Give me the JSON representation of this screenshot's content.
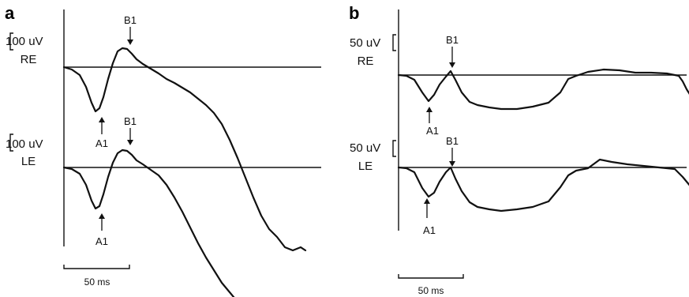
{
  "chart_data": [
    {
      "type": "line",
      "panel": "a",
      "scale_bar_x": "50 ms",
      "traces": [
        {
          "eye": "RE",
          "amplitude_scale": "100 uV",
          "peaks": [
            "A1",
            "B1"
          ],
          "points": [
            [
              0,
              0
            ],
            [
              10,
              -3
            ],
            [
              20,
              -10
            ],
            [
              28,
              -25
            ],
            [
              35,
              -45
            ],
            [
              40,
              -56
            ],
            [
              45,
              -52
            ],
            [
              50,
              -38
            ],
            [
              56,
              -15
            ],
            [
              62,
              5
            ],
            [
              68,
              20
            ],
            [
              74,
              24
            ],
            [
              80,
              23
            ],
            [
              86,
              17
            ],
            [
              92,
              10
            ],
            [
              100,
              4
            ],
            [
              110,
              -2
            ],
            [
              120,
              -8
            ],
            [
              130,
              -15
            ],
            [
              140,
              -20
            ],
            [
              150,
              -26
            ],
            [
              160,
              -32
            ],
            [
              170,
              -40
            ],
            [
              180,
              -48
            ],
            [
              190,
              -58
            ],
            [
              200,
              -72
            ],
            [
              210,
              -92
            ],
            [
              220,
              -115
            ],
            [
              230,
              -140
            ],
            [
              240,
              -165
            ],
            [
              250,
              -188
            ],
            [
              260,
              -205
            ],
            [
              270,
              -215
            ],
            [
              280,
              -228
            ],
            [
              290,
              -232
            ],
            [
              300,
              -228
            ],
            [
              306,
              -232
            ]
          ]
        },
        {
          "eye": "LE",
          "amplitude_scale": "100 uV",
          "peaks": [
            "A1",
            "B1"
          ],
          "points": [
            [
              0,
              0
            ],
            [
              10,
              -2
            ],
            [
              20,
              -8
            ],
            [
              28,
              -22
            ],
            [
              35,
              -42
            ],
            [
              40,
              -52
            ],
            [
              45,
              -49
            ],
            [
              50,
              -34
            ],
            [
              56,
              -12
            ],
            [
              62,
              6
            ],
            [
              68,
              18
            ],
            [
              74,
              22
            ],
            [
              80,
              21
            ],
            [
              86,
              16
            ],
            [
              92,
              9
            ],
            [
              100,
              4
            ],
            [
              110,
              -3
            ],
            [
              120,
              -10
            ],
            [
              130,
              -22
            ],
            [
              140,
              -38
            ],
            [
              150,
              -56
            ],
            [
              160,
              -76
            ],
            [
              170,
              -96
            ],
            [
              180,
              -114
            ],
            [
              190,
              -130
            ],
            [
              200,
              -146
            ],
            [
              210,
              -158
            ],
            [
              220,
              -170
            ]
          ]
        }
      ]
    },
    {
      "type": "line",
      "panel": "b",
      "scale_bar_x": "50 ms",
      "traces": [
        {
          "eye": "RE",
          "amplitude_scale": "50 uV",
          "peaks": [
            "A1",
            "B1"
          ],
          "points": [
            [
              0,
              0
            ],
            [
              10,
              -1
            ],
            [
              20,
              -6
            ],
            [
              30,
              -22
            ],
            [
              38,
              -33
            ],
            [
              45,
              -25
            ],
            [
              52,
              -12
            ],
            [
              60,
              -2
            ],
            [
              66,
              5
            ],
            [
              72,
              -6
            ],
            [
              80,
              -22
            ],
            [
              90,
              -34
            ],
            [
              100,
              -38
            ],
            [
              115,
              -41
            ],
            [
              130,
              -43
            ],
            [
              150,
              -43
            ],
            [
              170,
              -40
            ],
            [
              190,
              -35
            ],
            [
              205,
              -22
            ],
            [
              215,
              -5
            ],
            [
              225,
              -1
            ],
            [
              240,
              4
            ],
            [
              260,
              7
            ],
            [
              280,
              6
            ],
            [
              300,
              3
            ],
            [
              320,
              3
            ],
            [
              340,
              2
            ],
            [
              355,
              -1
            ],
            [
              360,
              -8
            ],
            [
              365,
              -18
            ],
            [
              370,
              -26
            ]
          ]
        },
        {
          "eye": "LE",
          "amplitude_scale": "50 uV",
          "peaks": [
            "A1",
            "B1"
          ],
          "points": [
            [
              0,
              0
            ],
            [
              10,
              -1
            ],
            [
              20,
              -6
            ],
            [
              30,
              -26
            ],
            [
              38,
              -37
            ],
            [
              45,
              -32
            ],
            [
              52,
              -18
            ],
            [
              60,
              -6
            ],
            [
              66,
              0
            ],
            [
              72,
              -14
            ],
            [
              80,
              -30
            ],
            [
              90,
              -44
            ],
            [
              100,
              -50
            ],
            [
              115,
              -53
            ],
            [
              130,
              -55
            ],
            [
              150,
              -53
            ],
            [
              170,
              -50
            ],
            [
              190,
              -43
            ],
            [
              205,
              -25
            ],
            [
              215,
              -10
            ],
            [
              225,
              -4
            ],
            [
              240,
              -1
            ],
            [
              255,
              10
            ],
            [
              270,
              7
            ],
            [
              290,
              4
            ],
            [
              310,
              2
            ],
            [
              330,
              0
            ],
            [
              350,
              -2
            ],
            [
              360,
              -12
            ],
            [
              370,
              -24
            ]
          ]
        }
      ]
    }
  ]
}
